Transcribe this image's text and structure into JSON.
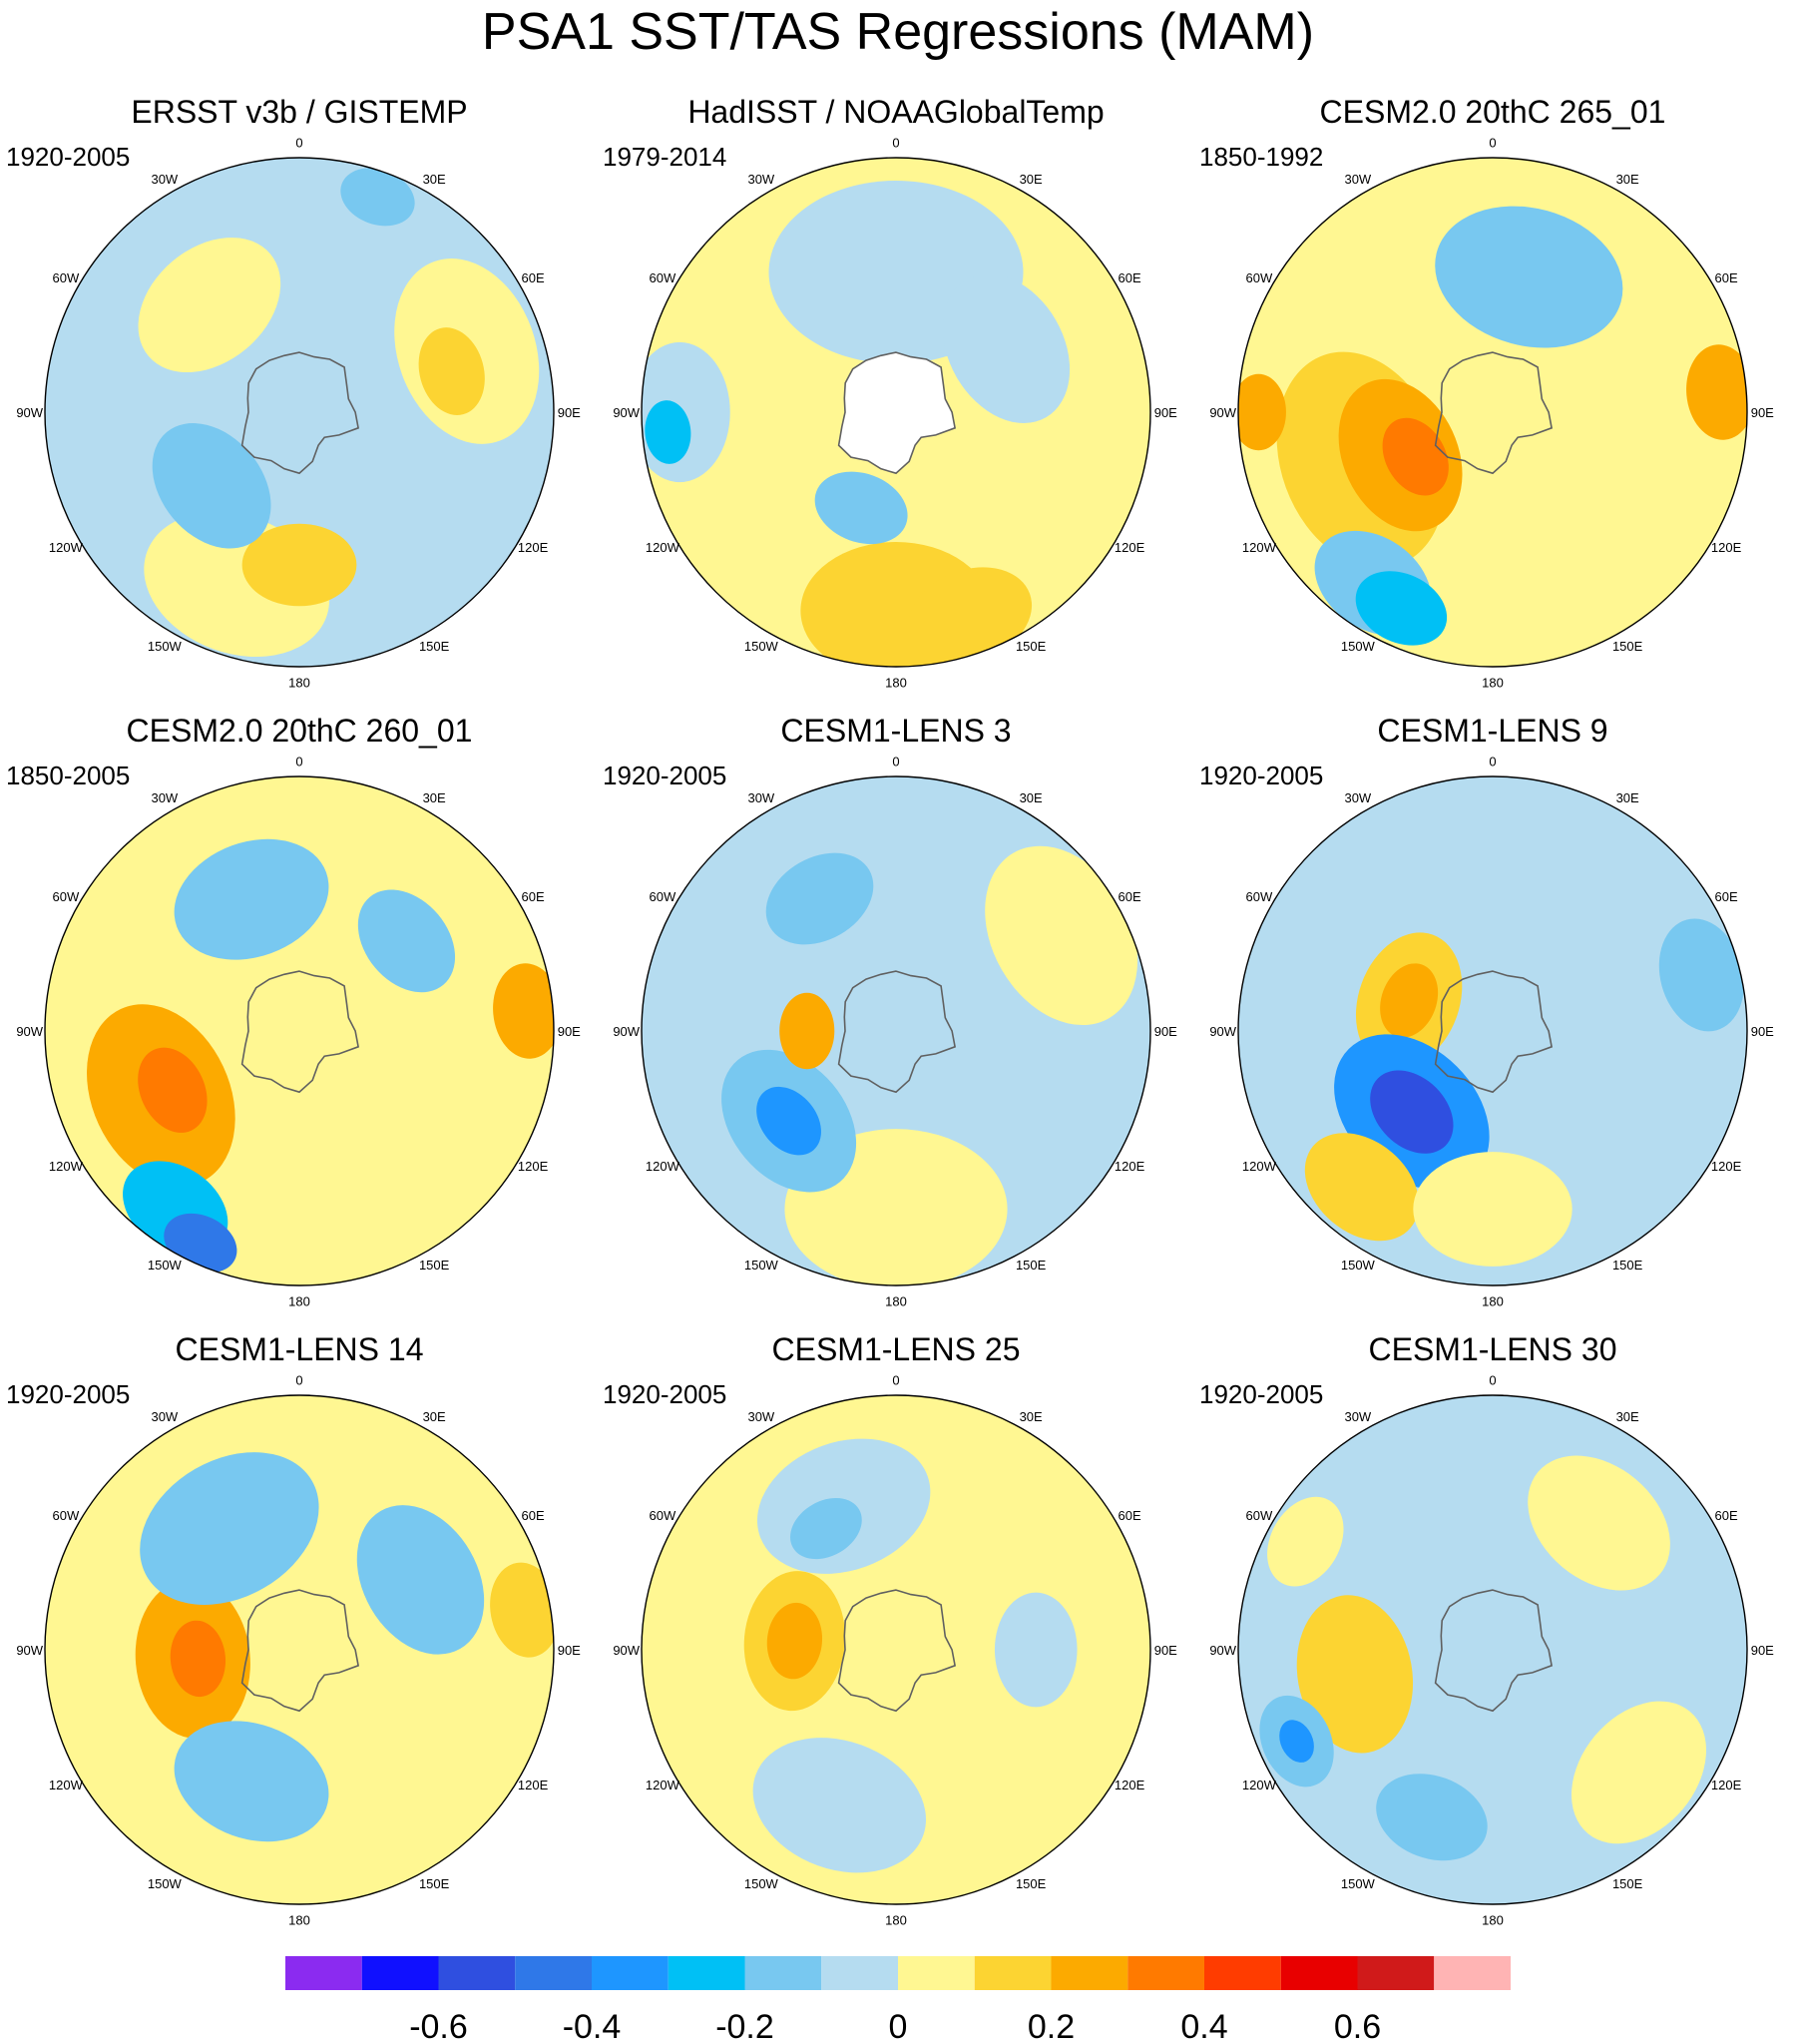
{
  "title": "PSA1 SST/TAS Regressions (MAM)",
  "longitude_labels": [
    "0",
    "30E",
    "60E",
    "90E",
    "120E",
    "150E",
    "180",
    "150W",
    "120W",
    "90W",
    "60W",
    "30W"
  ],
  "panels": [
    {
      "title": "ERSST v3b / GISTEMP",
      "period": "1920-2005",
      "base": "#b5dcf0",
      "blobs": [
        {
          "lon": 200,
          "r": 0.72,
          "s": 0.3,
          "fill": "#fff792"
        },
        {
          "lon": 180,
          "r": 0.6,
          "s": 0.18,
          "fill": "#fcd432"
        },
        {
          "lon": 230,
          "r": 0.45,
          "s": 0.22,
          "fill": "#78c8f0"
        },
        {
          "lon": 70,
          "r": 0.7,
          "s": 0.3,
          "fill": "#fff792"
        },
        {
          "lon": 75,
          "r": 0.62,
          "s": 0.14,
          "fill": "#fcd432"
        },
        {
          "lon": 320,
          "r": 0.55,
          "s": 0.25,
          "fill": "#fff792"
        },
        {
          "lon": 20,
          "r": 0.9,
          "s": 0.12,
          "fill": "#78c8f0"
        }
      ]
    },
    {
      "title": "HadISST / NOAAGlobalTemp",
      "period": "1979-2014",
      "base": "#fff792",
      "blobs": [
        {
          "lon": 180,
          "r": 0.78,
          "s": 0.3,
          "fill": "#fcd432"
        },
        {
          "lon": 160,
          "r": 0.85,
          "s": 0.2,
          "fill": "#fcd432"
        },
        {
          "lon": 270,
          "r": 0.85,
          "s": 0.22,
          "fill": "#b5dcf0"
        },
        {
          "lon": 265,
          "r": 0.9,
          "s": 0.1,
          "fill": "#00c0f5"
        },
        {
          "lon": 0,
          "r": 0.55,
          "s": 0.4,
          "fill": "#b5dcf0"
        },
        {
          "lon": 60,
          "r": 0.5,
          "s": 0.25,
          "fill": "#b5dcf0"
        },
        {
          "lon": 200,
          "r": 0.4,
          "s": 0.15,
          "fill": "#78c8f0"
        }
      ]
    },
    {
      "title": "CESM2.0 20thC 265_01",
      "period": "1850-1992",
      "base": "#fff792",
      "blobs": [
        {
          "lon": 250,
          "r": 0.55,
          "s": 0.35,
          "fill": "#fcd432"
        },
        {
          "lon": 245,
          "r": 0.4,
          "s": 0.25,
          "fill": "#fcaa00"
        },
        {
          "lon": 240,
          "r": 0.35,
          "s": 0.13,
          "fill": "#ff7a00"
        },
        {
          "lon": 215,
          "r": 0.82,
          "s": 0.2,
          "fill": "#78c8f0"
        },
        {
          "lon": 205,
          "r": 0.85,
          "s": 0.15,
          "fill": "#00c0f5"
        },
        {
          "lon": 270,
          "r": 0.92,
          "s": 0.12,
          "fill": "#fcaa00"
        },
        {
          "lon": 15,
          "r": 0.55,
          "s": 0.3,
          "fill": "#78c8f0"
        },
        {
          "lon": 85,
          "r": 0.9,
          "s": 0.15,
          "fill": "#fcaa00"
        }
      ]
    },
    {
      "title": "CESM2.0 20thC 260_01",
      "period": "1850-2005",
      "base": "#fff792",
      "blobs": [
        {
          "lon": 245,
          "r": 0.6,
          "s": 0.3,
          "fill": "#fcaa00"
        },
        {
          "lon": 245,
          "r": 0.55,
          "s": 0.14,
          "fill": "#ff7a00"
        },
        {
          "lon": 215,
          "r": 0.85,
          "s": 0.18,
          "fill": "#00c0f5"
        },
        {
          "lon": 205,
          "r": 0.92,
          "s": 0.12,
          "fill": "#2f78e8"
        },
        {
          "lon": 340,
          "r": 0.55,
          "s": 0.25,
          "fill": "#78c8f0"
        },
        {
          "lon": 50,
          "r": 0.55,
          "s": 0.18,
          "fill": "#78c8f0"
        },
        {
          "lon": 85,
          "r": 0.9,
          "s": 0.15,
          "fill": "#fcaa00"
        }
      ]
    },
    {
      "title": "CESM1-LENS 3",
      "period": "1920-2005",
      "base": "#b5dcf0",
      "blobs": [
        {
          "lon": 180,
          "r": 0.7,
          "s": 0.35,
          "fill": "#fff792"
        },
        {
          "lon": 230,
          "r": 0.55,
          "s": 0.25,
          "fill": "#78c8f0"
        },
        {
          "lon": 230,
          "r": 0.55,
          "s": 0.12,
          "fill": "#1e96ff"
        },
        {
          "lon": 270,
          "r": 0.35,
          "s": 0.12,
          "fill": "#fcaa00"
        },
        {
          "lon": 60,
          "r": 0.75,
          "s": 0.3,
          "fill": "#fff792"
        },
        {
          "lon": 330,
          "r": 0.6,
          "s": 0.18,
          "fill": "#78c8f0"
        }
      ]
    },
    {
      "title": "CESM1-LENS 9",
      "period": "1920-2005",
      "base": "#b5dcf0",
      "blobs": [
        {
          "lon": 290,
          "r": 0.35,
          "s": 0.22,
          "fill": "#fcd432"
        },
        {
          "lon": 290,
          "r": 0.35,
          "s": 0.12,
          "fill": "#fcaa00"
        },
        {
          "lon": 225,
          "r": 0.45,
          "s": 0.28,
          "fill": "#1e96ff"
        },
        {
          "lon": 225,
          "r": 0.45,
          "s": 0.15,
          "fill": "#2f4fe0"
        },
        {
          "lon": 220,
          "r": 0.8,
          "s": 0.2,
          "fill": "#fcd432"
        },
        {
          "lon": 180,
          "r": 0.7,
          "s": 0.25,
          "fill": "#fff792"
        },
        {
          "lon": 75,
          "r": 0.85,
          "s": 0.18,
          "fill": "#78c8f0"
        }
      ]
    },
    {
      "title": "CESM1-LENS 14",
      "period": "1920-2005",
      "base": "#fff792",
      "blobs": [
        {
          "lon": 265,
          "r": 0.42,
          "s": 0.25,
          "fill": "#fcaa00"
        },
        {
          "lon": 265,
          "r": 0.4,
          "s": 0.12,
          "fill": "#ff7a00"
        },
        {
          "lon": 200,
          "r": 0.55,
          "s": 0.25,
          "fill": "#78c8f0"
        },
        {
          "lon": 330,
          "r": 0.55,
          "s": 0.3,
          "fill": "#78c8f0"
        },
        {
          "lon": 60,
          "r": 0.55,
          "s": 0.25,
          "fill": "#78c8f0"
        },
        {
          "lon": 80,
          "r": 0.9,
          "s": 0.15,
          "fill": "#fcd432"
        }
      ]
    },
    {
      "title": "CESM1-LENS 25",
      "period": "1920-2005",
      "base": "#fff792",
      "blobs": [
        {
          "lon": 275,
          "r": 0.4,
          "s": 0.22,
          "fill": "#fcd432"
        },
        {
          "lon": 275,
          "r": 0.4,
          "s": 0.12,
          "fill": "#fcaa00"
        },
        {
          "lon": 200,
          "r": 0.65,
          "s": 0.28,
          "fill": "#b5dcf0"
        },
        {
          "lon": 340,
          "r": 0.6,
          "s": 0.28,
          "fill": "#b5dcf0"
        },
        {
          "lon": 330,
          "r": 0.55,
          "s": 0.12,
          "fill": "#78c8f0"
        },
        {
          "lon": 90,
          "r": 0.55,
          "s": 0.18,
          "fill": "#b5dcf0"
        }
      ]
    },
    {
      "title": "CESM1-LENS 30",
      "period": "1920-2005",
      "base": "#b5dcf0",
      "blobs": [
        {
          "lon": 260,
          "r": 0.55,
          "s": 0.25,
          "fill": "#fcd432"
        },
        {
          "lon": 245,
          "r": 0.85,
          "s": 0.15,
          "fill": "#78c8f0"
        },
        {
          "lon": 245,
          "r": 0.85,
          "s": 0.07,
          "fill": "#1e96ff"
        },
        {
          "lon": 40,
          "r": 0.65,
          "s": 0.25,
          "fill": "#fff792"
        },
        {
          "lon": 130,
          "r": 0.75,
          "s": 0.25,
          "fill": "#fff792"
        },
        {
          "lon": 300,
          "r": 0.85,
          "s": 0.15,
          "fill": "#fff792"
        },
        {
          "lon": 200,
          "r": 0.7,
          "s": 0.18,
          "fill": "#78c8f0"
        }
      ]
    }
  ],
  "colorbar": {
    "colors": [
      "#8b2bf0",
      "#1010ff",
      "#2f4fe0",
      "#2f78e8",
      "#1e96ff",
      "#00c0f5",
      "#78c8f0",
      "#b5dcf0",
      "#fff792",
      "#fcd432",
      "#fcaa00",
      "#ff7a00",
      "#ff3c00",
      "#e80000",
      "#d01a1a",
      "#ffb4b4"
    ],
    "tick_labels": [
      "-0.6",
      "-0.4",
      "-0.2",
      "0",
      "0.2",
      "0.4",
      "0.6"
    ],
    "tick_values": [
      -0.6,
      -0.4,
      -0.2,
      0,
      0.2,
      0.4,
      0.6
    ],
    "levels": [
      -0.7,
      -0.6,
      -0.5,
      -0.4,
      -0.3,
      -0.2,
      -0.1,
      0,
      0.1,
      0.2,
      0.3,
      0.4,
      0.5,
      0.6,
      0.7
    ]
  }
}
